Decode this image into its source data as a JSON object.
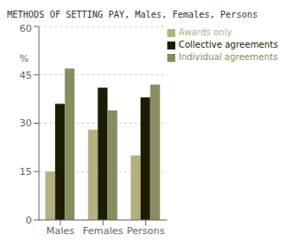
{
  "chart_data": {
    "type": "bar",
    "title": "METHODS OF SETTING PAY, Males, Females, Persons",
    "ylabel": "%",
    "categories": [
      "Males",
      "Females",
      "Persons"
    ],
    "series": [
      {
        "name": "Awards only",
        "color": "#b5b080",
        "values": [
          15,
          28,
          20
        ]
      },
      {
        "name": "Collective agreements",
        "color": "#1c1c00",
        "values": [
          36,
          41,
          38
        ]
      },
      {
        "name": "Individual agreements",
        "color": "#8b8b60",
        "values": [
          47,
          34,
          42
        ]
      }
    ],
    "ylim": [
      0,
      60
    ],
    "yticks": [
      0,
      15,
      30,
      45,
      60
    ],
    "grid": true,
    "legend": "upper right"
  }
}
